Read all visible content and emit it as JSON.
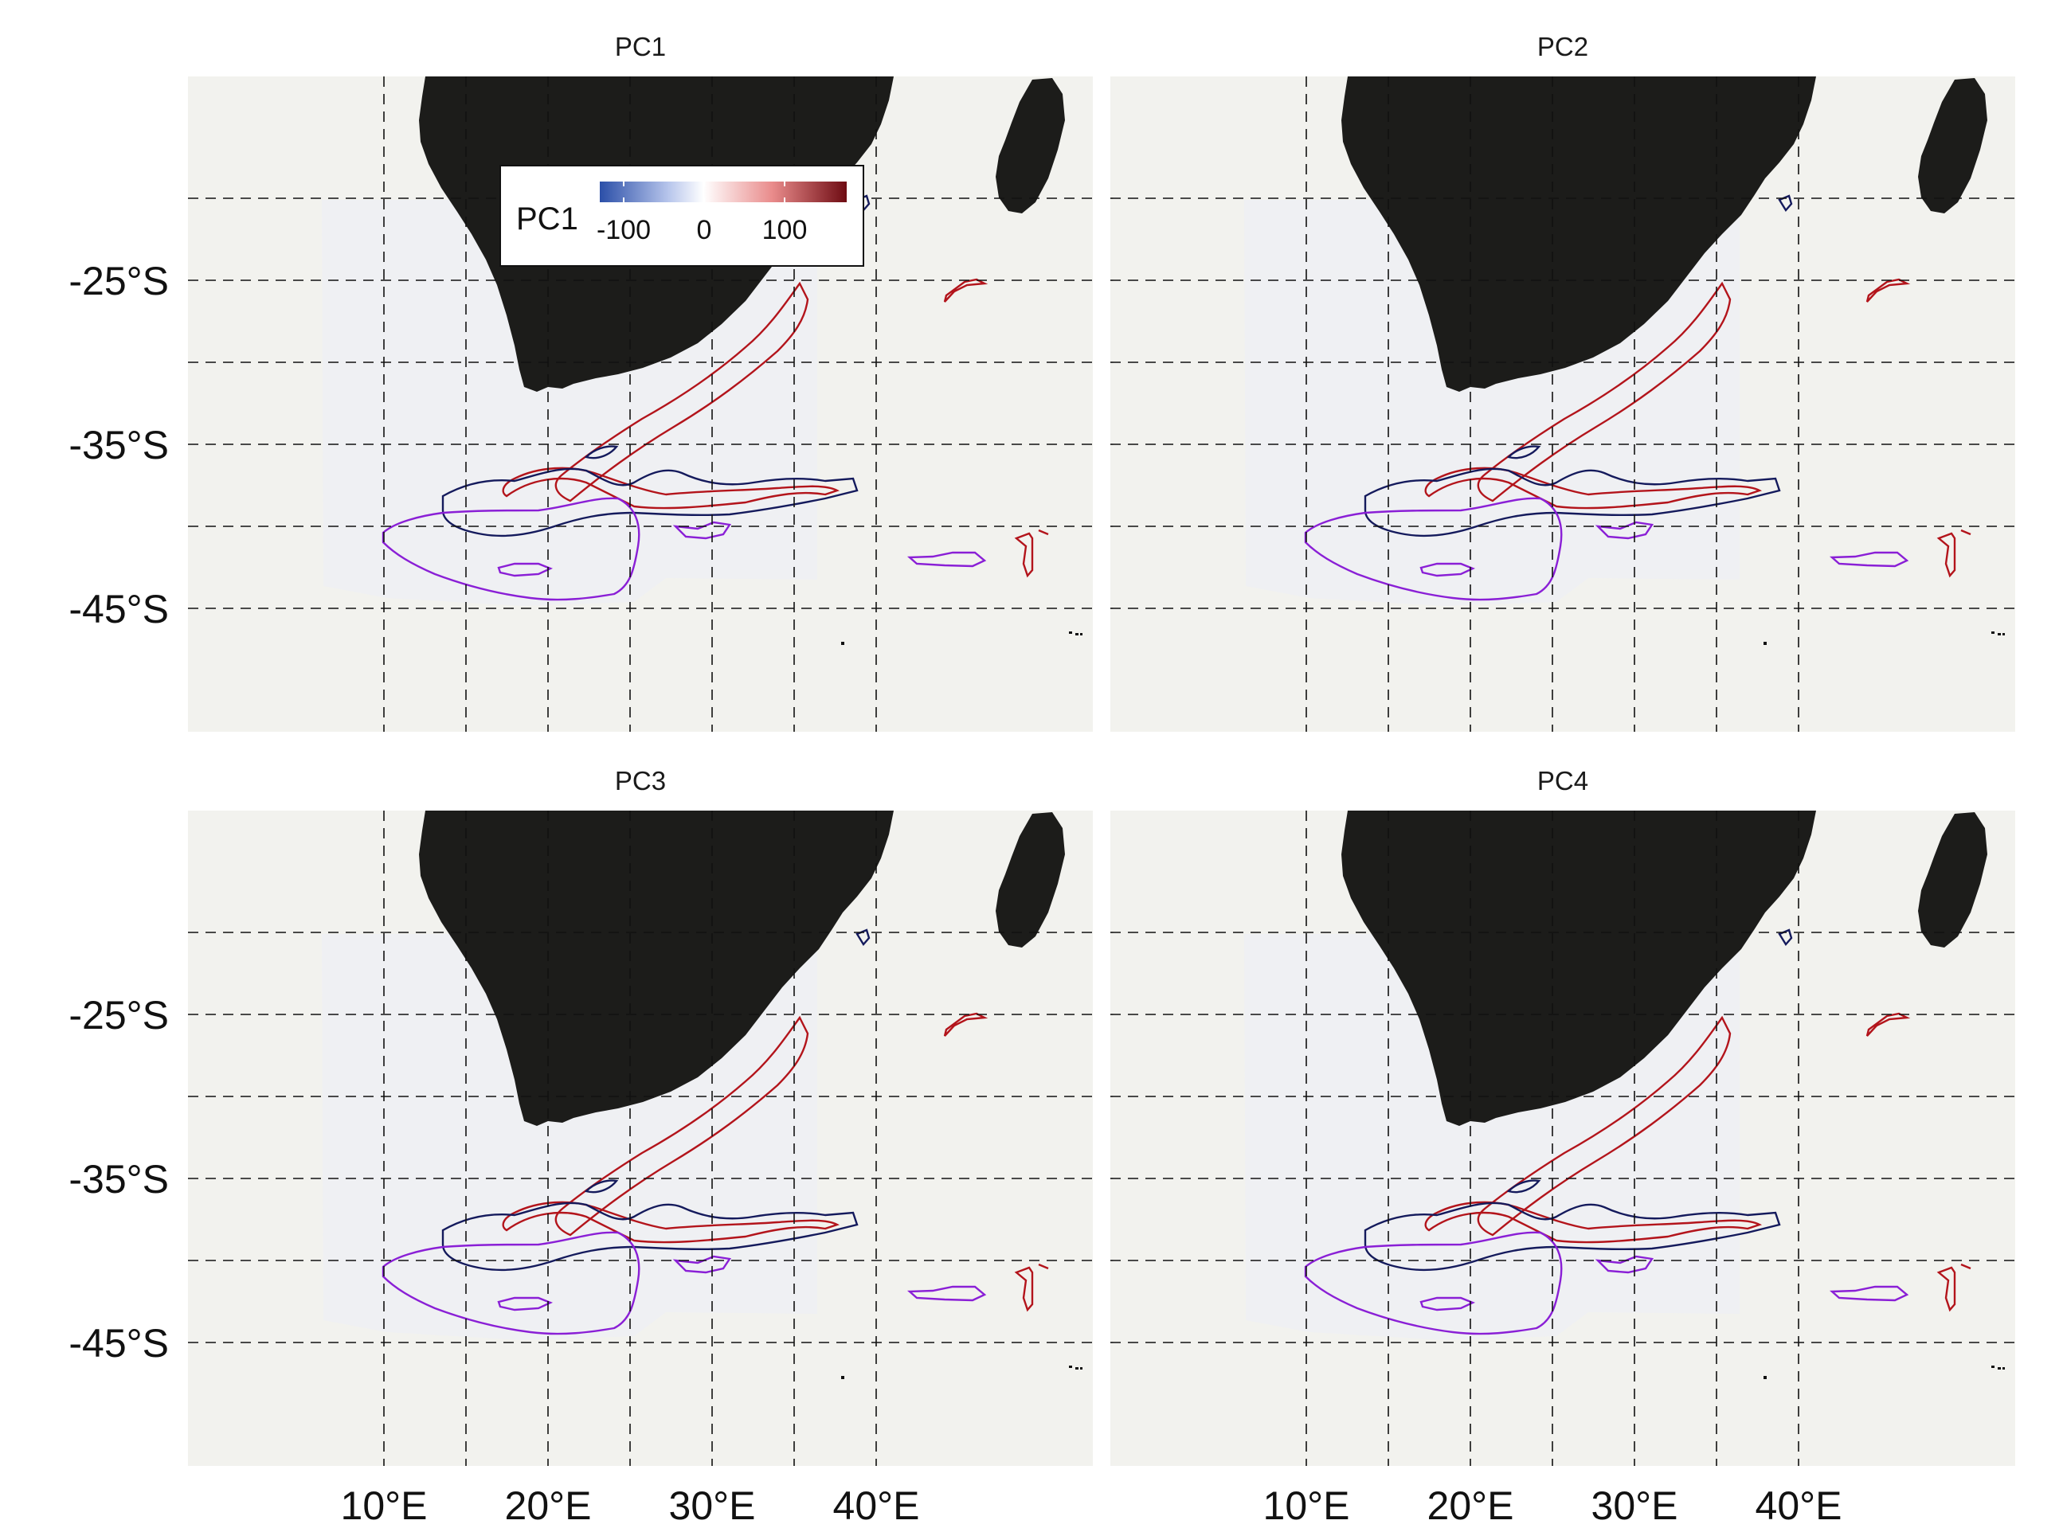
{
  "figure": {
    "panels": [
      {
        "id": "pc1",
        "title": "PC1"
      },
      {
        "id": "pc2",
        "title": "PC2"
      },
      {
        "id": "pc3",
        "title": "PC3"
      },
      {
        "id": "pc4",
        "title": "PC4"
      }
    ],
    "y_axis_labels": [
      "-25°S",
      "-35°S",
      "-45°S"
    ],
    "x_axis_labels": [
      "10°E",
      "20°E",
      "30°E",
      "40°E"
    ],
    "legend": {
      "title": "PC1",
      "ticks": [
        "-100",
        "0",
        "100"
      ],
      "colors": [
        "#2b4fa8",
        "#ffffff",
        "#6e0b12"
      ]
    },
    "colors": {
      "ocean": "#f2f2ee",
      "land": "#1c1c1a",
      "grid": "#111111",
      "contour_red": "#b3141b",
      "contour_navy": "#141a5c",
      "contour_purple": "#8a1fd6"
    }
  }
}
